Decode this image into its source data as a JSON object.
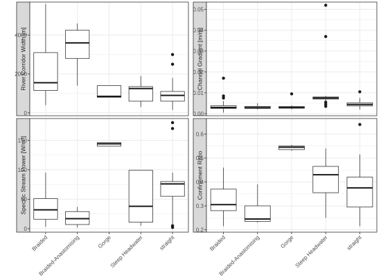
{
  "chart_data": [
    {
      "type": "box",
      "ylabel": "River Corridor Width [m]",
      "ylim": [
        -150,
        5700
      ],
      "yticks": [
        0,
        2000,
        4000
      ],
      "ytick_labels": [
        "0",
        "2000",
        "4000"
      ],
      "categories": [
        "Braided",
        "Braided-Anastomising",
        "Gorge",
        "Steep Headwater",
        "straight"
      ],
      "boxes": [
        {
          "min": 400,
          "q1": 1150,
          "median": 1550,
          "q3": 3100,
          "max": 5600,
          "outliers": []
        },
        {
          "min": 1400,
          "q1": 2800,
          "median": 3600,
          "q3": 4250,
          "max": 4600,
          "outliers": []
        },
        {
          "min": 800,
          "q1": 800,
          "median": 850,
          "q3": 1400,
          "max": 1400,
          "outliers": []
        },
        {
          "min": 300,
          "q1": 600,
          "median": 1250,
          "q3": 1350,
          "max": 1900,
          "outliers": []
        },
        {
          "min": 150,
          "q1": 600,
          "median": 900,
          "q3": 1100,
          "max": 1800,
          "outliers": [
            2500,
            3000
          ]
        }
      ]
    },
    {
      "type": "box",
      "ylabel": "Channel Gradient [m/m]",
      "ylim": [
        -0.001,
        0.0535
      ],
      "yticks": [
        0.0,
        0.01,
        0.02,
        0.03,
        0.04,
        0.05
      ],
      "ytick_labels": [
        "0.00",
        "0.01",
        "0.02",
        "0.03",
        "0.04",
        "0.05"
      ],
      "categories": [
        "Braided",
        "Braided-Anastomising",
        "Gorge",
        "Steep Headwater",
        "straight"
      ],
      "boxes": [
        {
          "min": 0.0005,
          "q1": 0.0025,
          "median": 0.003,
          "q3": 0.0038,
          "max": 0.006,
          "outliers": [
            0.0075,
            0.0085,
            0.017
          ]
        },
        {
          "min": 0.002,
          "q1": 0.0025,
          "median": 0.0029,
          "q3": 0.0035,
          "max": 0.005,
          "outliers": []
        },
        {
          "min": 0.002,
          "q1": 0.0026,
          "median": 0.003,
          "q3": 0.0034,
          "max": 0.004,
          "outliers": [
            0.0095
          ]
        },
        {
          "min": 0.006,
          "q1": 0.007,
          "median": 0.0075,
          "q3": 0.008,
          "max": 0.0085,
          "outliers": [
            0.0035,
            0.0045,
            0.0055,
            0.037,
            0.052
          ]
        },
        {
          "min": 0.002,
          "q1": 0.0037,
          "median": 0.0044,
          "q3": 0.0052,
          "max": 0.0075,
          "outliers": [
            0.0105
          ]
        }
      ]
    },
    {
      "type": "box",
      "ylabel": "Specific Stream Power [W/m²]",
      "ylim": [
        -6,
        187
      ],
      "yticks": [
        0,
        50,
        100,
        150
      ],
      "ytick_labels": [
        "0",
        "50",
        "100",
        "150"
      ],
      "categories": [
        "Braided",
        "Braided-Anastomising",
        "Gorge",
        "Steep Headwater",
        "straight"
      ],
      "boxes": [
        {
          "min": 3,
          "q1": 16,
          "median": 32,
          "q3": 51,
          "max": 95,
          "outliers": []
        },
        {
          "min": 2,
          "q1": 7,
          "median": 17,
          "q3": 29,
          "max": 37,
          "outliers": []
        },
        {
          "min": 140,
          "q1": 140,
          "median": 144,
          "q3": 146,
          "max": 146,
          "outliers": []
        },
        {
          "min": 5,
          "q1": 11,
          "median": 38,
          "q3": 99,
          "max": 99,
          "outliers": []
        },
        {
          "min": 8,
          "q1": 55,
          "median": 76,
          "q3": 80,
          "max": 95,
          "outliers": [
            2,
            5,
            170,
            180
          ]
        }
      ]
    },
    {
      "type": "box",
      "ylabel": "Confinement Ratio",
      "ylim": [
        0.19,
        0.665
      ],
      "yticks": [
        0.2,
        0.3,
        0.4,
        0.5,
        0.6
      ],
      "ytick_labels": [
        "0.2",
        "0.3",
        "0.4",
        "0.5",
        "0.6"
      ],
      "categories": [
        "Braided",
        "Braided-Anastomising",
        "Gorge",
        "Steep Headwater",
        "straight"
      ],
      "boxes": [
        {
          "min": 0.215,
          "q1": 0.28,
          "median": 0.305,
          "q3": 0.37,
          "max": 0.46,
          "outliers": []
        },
        {
          "min": 0.23,
          "q1": 0.235,
          "median": 0.245,
          "q3": 0.3,
          "max": 0.39,
          "outliers": []
        },
        {
          "min": 0.53,
          "q1": 0.535,
          "median": 0.545,
          "q3": 0.55,
          "max": 0.555,
          "outliers": []
        },
        {
          "min": 0.25,
          "q1": 0.355,
          "median": 0.43,
          "q3": 0.465,
          "max": 0.54,
          "outliers": []
        },
        {
          "min": 0.215,
          "q1": 0.295,
          "median": 0.375,
          "q3": 0.42,
          "max": 0.515,
          "outliers": [
            0.64
          ]
        }
      ]
    }
  ],
  "x_tick_labels": [
    "Braided",
    "Braided-Anastomising",
    "Gorge",
    "Steep Headwater",
    "straight"
  ],
  "grid": true,
  "colors": {
    "panel_bg": "#ffffff",
    "grid": "#ebebeb",
    "strip_bg": "#d9d9d9",
    "border": "#333333",
    "box": "#333333"
  }
}
